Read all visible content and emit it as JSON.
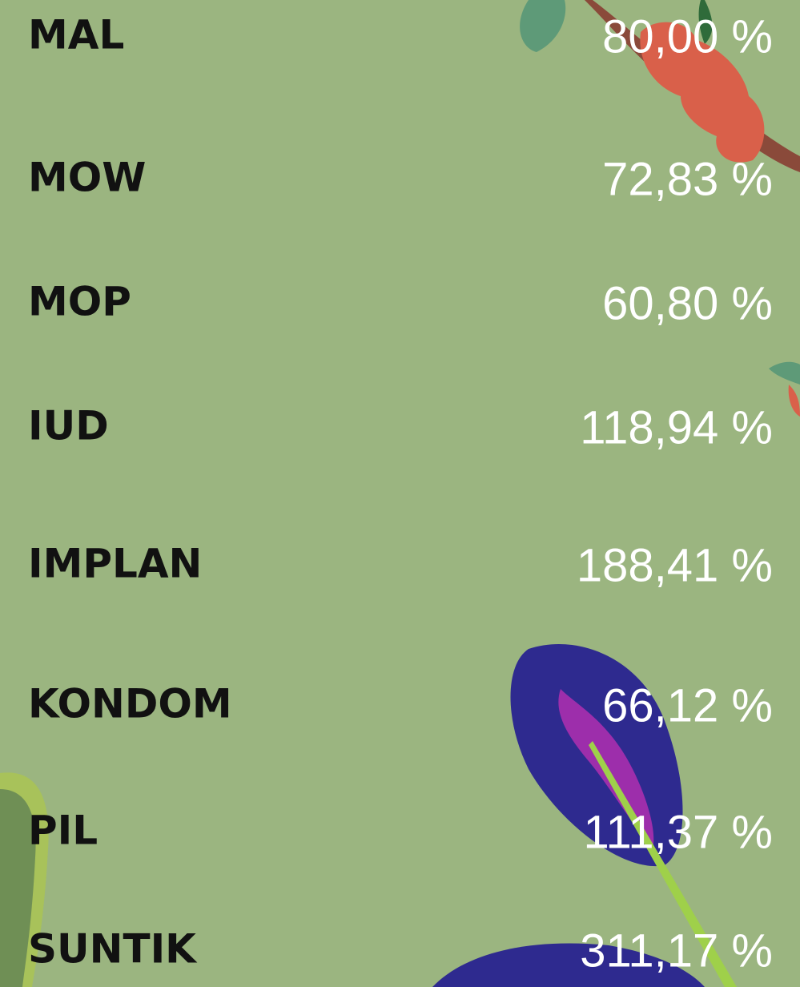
{
  "items": [
    {
      "label": "MAL",
      "value": "80,00 %"
    },
    {
      "label": "MOW",
      "value": "72,83 %"
    },
    {
      "label": "MOP",
      "value": "60,80 %"
    },
    {
      "label": "IUD",
      "value": "118,94 %"
    },
    {
      "label": "IMPLAN",
      "value": "188,41 %"
    },
    {
      "label": "KONDOM",
      "value": "66,12 %"
    },
    {
      "label": "PIL",
      "value": "111,37 %"
    },
    {
      "label": "SUNTIK",
      "value": "311,17 %"
    }
  ]
}
